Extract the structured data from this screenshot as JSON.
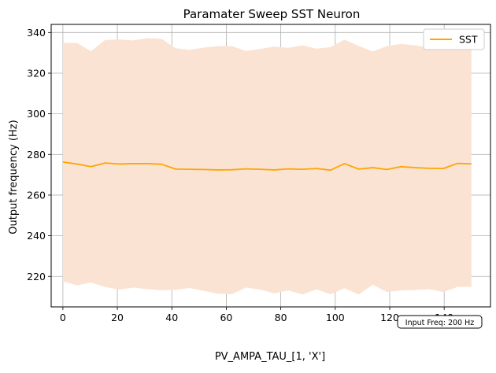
{
  "chart_data": {
    "type": "line",
    "title": "Paramater Sweep SST Neuron",
    "xlabel": "PV_AMPA_TAU_[1, 'X']",
    "ylabel": "Output frequency (Hz)",
    "xlim": [
      -4.3,
      157.0
    ],
    "ylim": [
      205.0,
      344.0
    ],
    "xticks": [
      0,
      20,
      40,
      60,
      80,
      100,
      120,
      140
    ],
    "yticks": [
      220,
      240,
      260,
      280,
      300,
      320,
      340
    ],
    "grid": true,
    "legend_position": "top-right",
    "annotation": "Input Freq: 200 Hz",
    "colors": {
      "line": "#FFA500",
      "band": "#FBE3D3",
      "grid": "#b0b0b0"
    },
    "series": [
      {
        "name": "SST",
        "x": [
          0,
          5.2,
          10.3,
          15.5,
          20.7,
          25.9,
          31.0,
          36.2,
          41.4,
          46.6,
          51.7,
          56.9,
          62.1,
          67.2,
          72.4,
          77.6,
          82.8,
          87.9,
          93.1,
          98.3,
          103.4,
          108.6,
          113.8,
          119.0,
          124.1,
          129.3,
          134.5,
          139.7,
          144.8,
          150.0
        ],
        "y": [
          276.3,
          275.3,
          274.0,
          275.8,
          275.3,
          275.5,
          275.5,
          275.2,
          272.8,
          272.7,
          272.6,
          272.4,
          272.5,
          272.9,
          272.7,
          272.4,
          272.9,
          272.7,
          273.1,
          272.3,
          275.5,
          272.8,
          273.5,
          272.6,
          274.0,
          273.5,
          273.2,
          273.1,
          275.6,
          275.4
        ],
        "upper": [
          334.9,
          334.9,
          330.8,
          336.3,
          336.6,
          336.1,
          337.2,
          336.9,
          332.3,
          331.5,
          332.6,
          333.3,
          333.3,
          331.0,
          331.9,
          333.1,
          332.5,
          333.7,
          332.1,
          332.8,
          336.5,
          333.4,
          330.7,
          333.3,
          334.4,
          333.7,
          332.5,
          331.9,
          333.9,
          333.5
        ],
        "lower": [
          217.6,
          215.6,
          217.0,
          214.8,
          213.5,
          214.5,
          213.7,
          213.2,
          213.4,
          214.3,
          212.9,
          211.5,
          211.3,
          214.5,
          213.5,
          211.7,
          213.1,
          211.1,
          213.6,
          211.2,
          214.2,
          211.1,
          215.9,
          212.3,
          213.1,
          213.3,
          213.7,
          212.3,
          214.8,
          214.9
        ]
      }
    ]
  }
}
